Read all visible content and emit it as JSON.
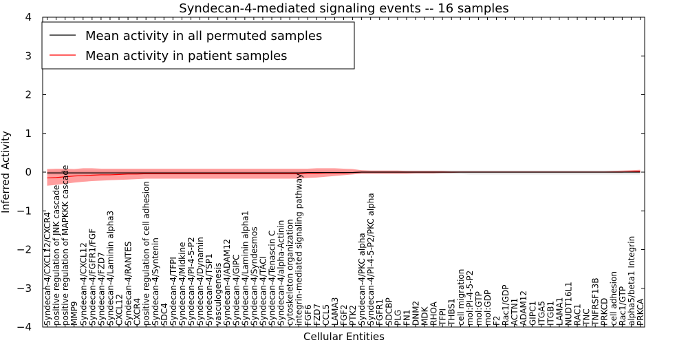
{
  "chart_data": {
    "type": "line",
    "title": "Syndecan-4-mediated signaling events -- 16 samples",
    "xlabel": "Cellular Entities",
    "ylabel": "Inferred Activity",
    "ylim": [
      -4,
      4
    ],
    "yticks": [
      "4",
      "3",
      "2",
      "1",
      "0",
      "−1",
      "−2",
      "−3",
      "−4"
    ],
    "ytick_values": [
      4,
      3,
      2,
      1,
      0,
      -1,
      -2,
      -3,
      -4
    ],
    "legend": {
      "placement": "top-left",
      "entries": [
        {
          "label": "Mean activity in all permuted samples",
          "color": "#000000"
        },
        {
          "label": "Mean activity in patient samples",
          "color": "#ff0000"
        }
      ]
    },
    "categories": [
      "Syndecan-4/CXCL12/CXCR4",
      "positive regulation of JNK cascade",
      "positive regulation of MAPKKK cascade",
      "MMP9",
      "Syndecan-4/CXCL12",
      "Syndecan-4/FGFR1/FGF",
      "Syndecan-4/FZD7",
      "Syndecan-4/Laminin alpha3",
      "CXCL12",
      "Syndecan-4/RANTES",
      "CXCR4",
      "positive regulation of cell adhesion",
      "Syndecan-4/Syntenin",
      "SDC4",
      "Syndecan-4/TFPI",
      "Syndecan-4/Midkine",
      "Syndecan-4/PI-4-5-P2",
      "Syndecan-4/Dynamin",
      "Syndecan-4/TSP1",
      "vasculogenesis",
      "Syndecan-4/ADAM12",
      "Syndecan-4/GIPC",
      "Syndecan-4/Laminin alpha1",
      "Syndecan-4/Syndesmos",
      "Syndecan-4/TACI",
      "Syndecan-4/Tenascin C",
      "Syndecan-4/alpha-Actinin",
      "cytoskeleton organization",
      "integrin-mediated signaling pathway",
      "FGF6",
      "FZD7",
      "CCL5",
      "LAMA3",
      "FGF2",
      "PTK2",
      "Syndecan-4/PKC alpha",
      "Syndecan-4/PI-4-5-P2/PKC alpha",
      "FGFR1",
      "SDCBP",
      "PLG",
      "FN1",
      "DNM2",
      "MDK",
      "RHOA",
      "TFPI",
      "THBS1",
      "cell migration",
      "mol:PI-4-5-P2",
      "mol:GTP",
      "mol:GDP",
      "F2",
      "Rac1/GDP",
      "ACTN1",
      "ADAM12",
      "GIPC1",
      "ITGA5",
      "ITGB1",
      "LAMA1",
      "NUDT16L1",
      "RAC1",
      "TNC",
      "TNFRSF13B",
      "PRKCD",
      "cell adhesion",
      "Rac1/GTP",
      "alpha5/beta1 Integrin",
      "PRKCA"
    ],
    "series": [
      {
        "name": "Mean activity in all permuted samples",
        "color": "#000000",
        "values": [
          -0.02,
          -0.02,
          -0.02,
          -0.02,
          -0.02,
          -0.02,
          -0.02,
          -0.02,
          -0.02,
          -0.02,
          -0.02,
          -0.02,
          -0.02,
          -0.02,
          -0.02,
          -0.02,
          -0.02,
          -0.02,
          -0.02,
          -0.02,
          -0.02,
          -0.02,
          -0.02,
          -0.02,
          -0.02,
          -0.02,
          -0.02,
          -0.02,
          -0.02,
          -0.01,
          -0.01,
          -0.01,
          -0.01,
          -0.01,
          -0.01,
          0.0,
          0.0,
          0.0,
          0.0,
          0.0,
          0.0,
          0.0,
          0.0,
          0.0,
          0.0,
          0.0,
          0.0,
          0.0,
          0.0,
          0.0,
          0.0,
          0.0,
          0.0,
          0.0,
          0.0,
          0.0,
          0.0,
          0.0,
          0.0,
          0.0,
          0.0,
          0.0,
          0.0,
          0.0,
          0.0,
          0.0,
          0.0
        ],
        "band_low": [
          -0.06,
          -0.06,
          -0.06,
          -0.06,
          -0.06,
          -0.06,
          -0.06,
          -0.06,
          -0.06,
          -0.06,
          -0.06,
          -0.06,
          -0.06,
          -0.06,
          -0.06,
          -0.06,
          -0.06,
          -0.06,
          -0.06,
          -0.06,
          -0.06,
          -0.06,
          -0.06,
          -0.06,
          -0.06,
          -0.06,
          -0.06,
          -0.06,
          -0.06,
          -0.05,
          -0.05,
          -0.05,
          -0.05,
          -0.05,
          -0.05,
          -0.05,
          -0.05,
          -0.05,
          -0.05,
          -0.05,
          -0.05,
          -0.05,
          -0.05,
          -0.05,
          -0.05,
          -0.05,
          -0.05,
          -0.06,
          -0.06,
          -0.06,
          -0.06,
          -0.06,
          -0.06,
          -0.06,
          -0.06,
          -0.06,
          -0.06,
          -0.06,
          -0.06,
          -0.06,
          -0.06,
          -0.06,
          -0.06,
          -0.06,
          -0.06,
          -0.06,
          -0.06
        ],
        "band_high": [
          0.04,
          0.04,
          0.04,
          0.04,
          0.04,
          0.04,
          0.04,
          0.04,
          0.04,
          0.04,
          0.04,
          0.04,
          0.04,
          0.04,
          0.04,
          0.04,
          0.04,
          0.04,
          0.04,
          0.04,
          0.04,
          0.04,
          0.04,
          0.04,
          0.04,
          0.04,
          0.04,
          0.04,
          0.04,
          0.04,
          0.04,
          0.04,
          0.04,
          0.04,
          0.04,
          0.04,
          0.04,
          0.04,
          0.04,
          0.04,
          0.04,
          0.04,
          0.04,
          0.04,
          0.04,
          0.04,
          0.04,
          0.04,
          0.04,
          0.04,
          0.04,
          0.04,
          0.04,
          0.04,
          0.04,
          0.04,
          0.04,
          0.04,
          0.04,
          0.04,
          0.04,
          0.04,
          0.04,
          0.04,
          0.04,
          0.04,
          0.04
        ]
      },
      {
        "name": "Mean activity in patient samples",
        "color": "#ff0000",
        "values": [
          -0.15,
          -0.14,
          -0.12,
          -0.1,
          -0.09,
          -0.08,
          -0.07,
          -0.07,
          -0.06,
          -0.05,
          -0.05,
          -0.04,
          -0.04,
          -0.04,
          -0.04,
          -0.04,
          -0.04,
          -0.04,
          -0.04,
          -0.04,
          -0.04,
          -0.04,
          -0.04,
          -0.04,
          -0.04,
          -0.04,
          -0.04,
          -0.04,
          -0.04,
          -0.03,
          -0.03,
          -0.02,
          -0.02,
          -0.02,
          -0.01,
          0.0,
          0.0,
          0.0,
          0.0,
          0.0,
          0.0,
          0.0,
          0.0,
          0.0,
          0.0,
          0.0,
          0.0,
          0.0,
          0.0,
          0.0,
          0.0,
          0.0,
          0.0,
          0.0,
          0.0,
          0.0,
          0.0,
          0.0,
          0.0,
          0.0,
          0.0,
          0.0,
          0.0,
          0.0,
          0.0,
          0.01,
          0.02
        ],
        "band_low": [
          -0.35,
          -0.33,
          -0.3,
          -0.27,
          -0.25,
          -0.23,
          -0.22,
          -0.21,
          -0.2,
          -0.19,
          -0.18,
          -0.17,
          -0.17,
          -0.17,
          -0.17,
          -0.17,
          -0.17,
          -0.17,
          -0.17,
          -0.17,
          -0.17,
          -0.17,
          -0.17,
          -0.17,
          -0.17,
          -0.17,
          -0.17,
          -0.17,
          -0.17,
          -0.15,
          -0.14,
          -0.12,
          -0.1,
          -0.08,
          -0.06,
          -0.04,
          -0.04,
          -0.04,
          -0.04,
          -0.04,
          -0.04,
          -0.03,
          -0.03,
          -0.03,
          -0.02,
          -0.02,
          -0.01,
          -0.01,
          -0.01,
          -0.01,
          -0.01,
          -0.01,
          -0.01,
          -0.01,
          -0.01,
          -0.01,
          -0.01,
          -0.01,
          -0.01,
          -0.01,
          -0.01,
          -0.01,
          -0.01,
          -0.01,
          -0.01,
          -0.01,
          -0.01
        ],
        "band_high": [
          0.08,
          0.09,
          0.09,
          0.08,
          0.1,
          0.1,
          0.09,
          0.09,
          0.09,
          0.09,
          0.09,
          0.09,
          0.09,
          0.09,
          0.09,
          0.09,
          0.09,
          0.09,
          0.09,
          0.09,
          0.09,
          0.09,
          0.09,
          0.09,
          0.09,
          0.09,
          0.09,
          0.09,
          0.09,
          0.09,
          0.1,
          0.1,
          0.1,
          0.09,
          0.08,
          0.05,
          0.04,
          0.04,
          0.04,
          0.04,
          0.03,
          0.03,
          0.03,
          0.03,
          0.03,
          0.02,
          0.02,
          0.02,
          0.02,
          0.02,
          0.02,
          0.02,
          0.02,
          0.02,
          0.02,
          0.02,
          0.02,
          0.02,
          0.02,
          0.02,
          0.02,
          0.02,
          0.02,
          0.03,
          0.04,
          0.05,
          0.06
        ]
      }
    ]
  }
}
